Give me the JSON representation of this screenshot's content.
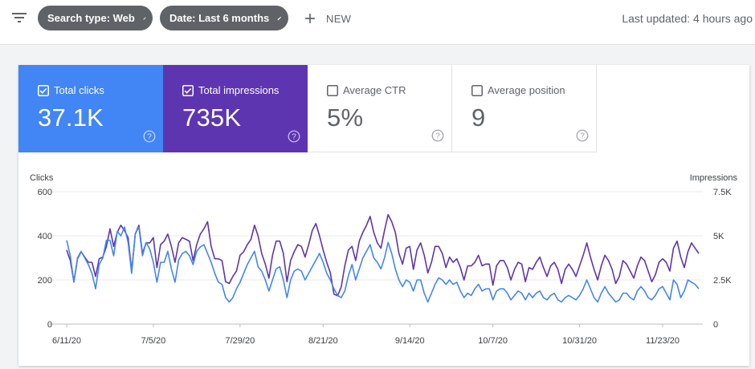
{
  "toolbar": {
    "chips": [
      {
        "label": "Search type: Web"
      },
      {
        "label": "Date: Last 6 months"
      }
    ],
    "new_label": "NEW",
    "last_updated": "Last updated: 4 hours ago"
  },
  "metrics": [
    {
      "label": "Total clicks",
      "value": "37.1K",
      "checked": true
    },
    {
      "label": "Total impressions",
      "value": "735K",
      "checked": true
    },
    {
      "label": "Average CTR",
      "value": "5%",
      "checked": false
    },
    {
      "label": "Average position",
      "value": "9",
      "checked": false
    }
  ],
  "colors": {
    "clicks": "#4285f4",
    "impressions": "#5e35b1",
    "chip": "#5f6368"
  },
  "icons": {
    "filter": "filter-icon",
    "edit": "pencil-icon",
    "add": "plus-icon",
    "help": "help-circle-icon",
    "checkbox": "checkbox-icon"
  },
  "chart_data": {
    "type": "line",
    "ylabel_left": "Clicks",
    "ylabel_right": "Impressions",
    "y_left_ticks": [
      "0",
      "200",
      "400",
      "600"
    ],
    "y_left_range": [
      0,
      600
    ],
    "y_right_ticks": [
      "0",
      "2.5K",
      "5K",
      "7.5K"
    ],
    "y_right_range": [
      0,
      7500
    ],
    "x_ticks": [
      "6/11/20",
      "7/5/20",
      "7/29/20",
      "8/21/20",
      "9/14/20",
      "10/7/20",
      "10/31/20",
      "11/23/20"
    ],
    "grid": true,
    "series": [
      {
        "name": "Clicks",
        "axis": "left",
        "values": [
          380,
          310,
          190,
          300,
          330,
          300,
          270,
          230,
          160,
          270,
          300,
          380,
          380,
          310,
          420,
          400,
          440,
          370,
          230,
          410,
          440,
          310,
          370,
          340,
          280,
          190,
          280,
          280,
          330,
          250,
          190,
          290,
          320,
          330,
          310,
          270,
          330,
          350,
          360,
          320,
          280,
          230,
          190,
          180,
          120,
          100,
          120,
          160,
          190,
          230,
          270,
          300,
          330,
          260,
          240,
          200,
          150,
          200,
          250,
          260,
          200,
          120,
          200,
          240,
          250,
          240,
          200,
          230,
          260,
          290,
          320,
          280,
          230,
          200,
          160,
          130,
          120,
          150,
          220,
          270,
          200,
          250,
          300,
          330,
          360,
          300,
          280,
          250,
          300,
          370,
          320,
          250,
          200,
          170,
          200,
          190,
          150,
          200,
          200,
          140,
          100,
          140,
          180,
          210,
          200,
          180,
          200,
          180,
          190,
          150,
          120,
          140,
          130,
          160,
          180,
          150,
          160,
          160,
          110,
          150,
          160,
          160,
          140,
          110,
          130,
          150,
          140,
          110,
          140,
          120,
          140,
          150,
          120,
          110,
          130,
          140,
          110,
          100,
          120,
          130,
          120,
          110,
          130,
          160,
          200,
          160,
          120,
          100,
          140,
          170,
          140,
          120,
          100,
          110,
          140,
          140,
          120,
          110,
          150,
          170,
          150,
          120,
          110,
          130,
          160,
          170,
          140,
          110,
          200,
          180,
          120,
          150,
          200,
          190,
          180,
          160
        ]
      },
      {
        "name": "Impressions",
        "axis": "right",
        "values": [
          4200,
          3600,
          2400,
          3700,
          4100,
          3800,
          3500,
          3500,
          2700,
          3700,
          3800,
          4400,
          5400,
          4400,
          5200,
          5600,
          5300,
          4900,
          3000,
          5100,
          5600,
          4000,
          4600,
          4600,
          4900,
          3200,
          4500,
          4700,
          5100,
          4400,
          3500,
          4600,
          4900,
          4800,
          4700,
          3600,
          4500,
          5100,
          5400,
          5800,
          4400,
          3700,
          3700,
          3600,
          2400,
          2300,
          2700,
          3000,
          3900,
          4100,
          4500,
          4800,
          5600,
          5000,
          4000,
          3400,
          2600,
          3900,
          4700,
          4700,
          4000,
          2400,
          3600,
          4100,
          4500,
          4400,
          3800,
          4500,
          5300,
          5700,
          5000,
          4200,
          3500,
          2900,
          1700,
          1600,
          2100,
          3300,
          4200,
          4400,
          3600,
          4700,
          5200,
          5600,
          6100,
          5200,
          4600,
          4300,
          5300,
          6200,
          5800,
          5200,
          4000,
          3400,
          4300,
          4400,
          3100,
          4200,
          4600,
          3900,
          2900,
          3500,
          4400,
          4400,
          4000,
          3200,
          3800,
          3500,
          3700,
          3200,
          2500,
          3300,
          3300,
          3500,
          3900,
          3300,
          3400,
          3400,
          2200,
          3300,
          3600,
          3600,
          3200,
          2500,
          3100,
          3500,
          3400,
          2400,
          3200,
          3100,
          3500,
          3800,
          3200,
          2700,
          3300,
          3500,
          3100,
          2300,
          3100,
          3400,
          3100,
          2700,
          3300,
          3900,
          4600,
          3800,
          3100,
          2500,
          3300,
          3900,
          3600,
          3100,
          2300,
          2700,
          3600,
          3400,
          3000,
          2600,
          3300,
          3800,
          3600,
          3000,
          2400,
          2800,
          3500,
          3700,
          3500,
          3000,
          4300,
          4700,
          3800,
          3200,
          4100,
          4600,
          4300,
          4000
        ]
      }
    ]
  }
}
